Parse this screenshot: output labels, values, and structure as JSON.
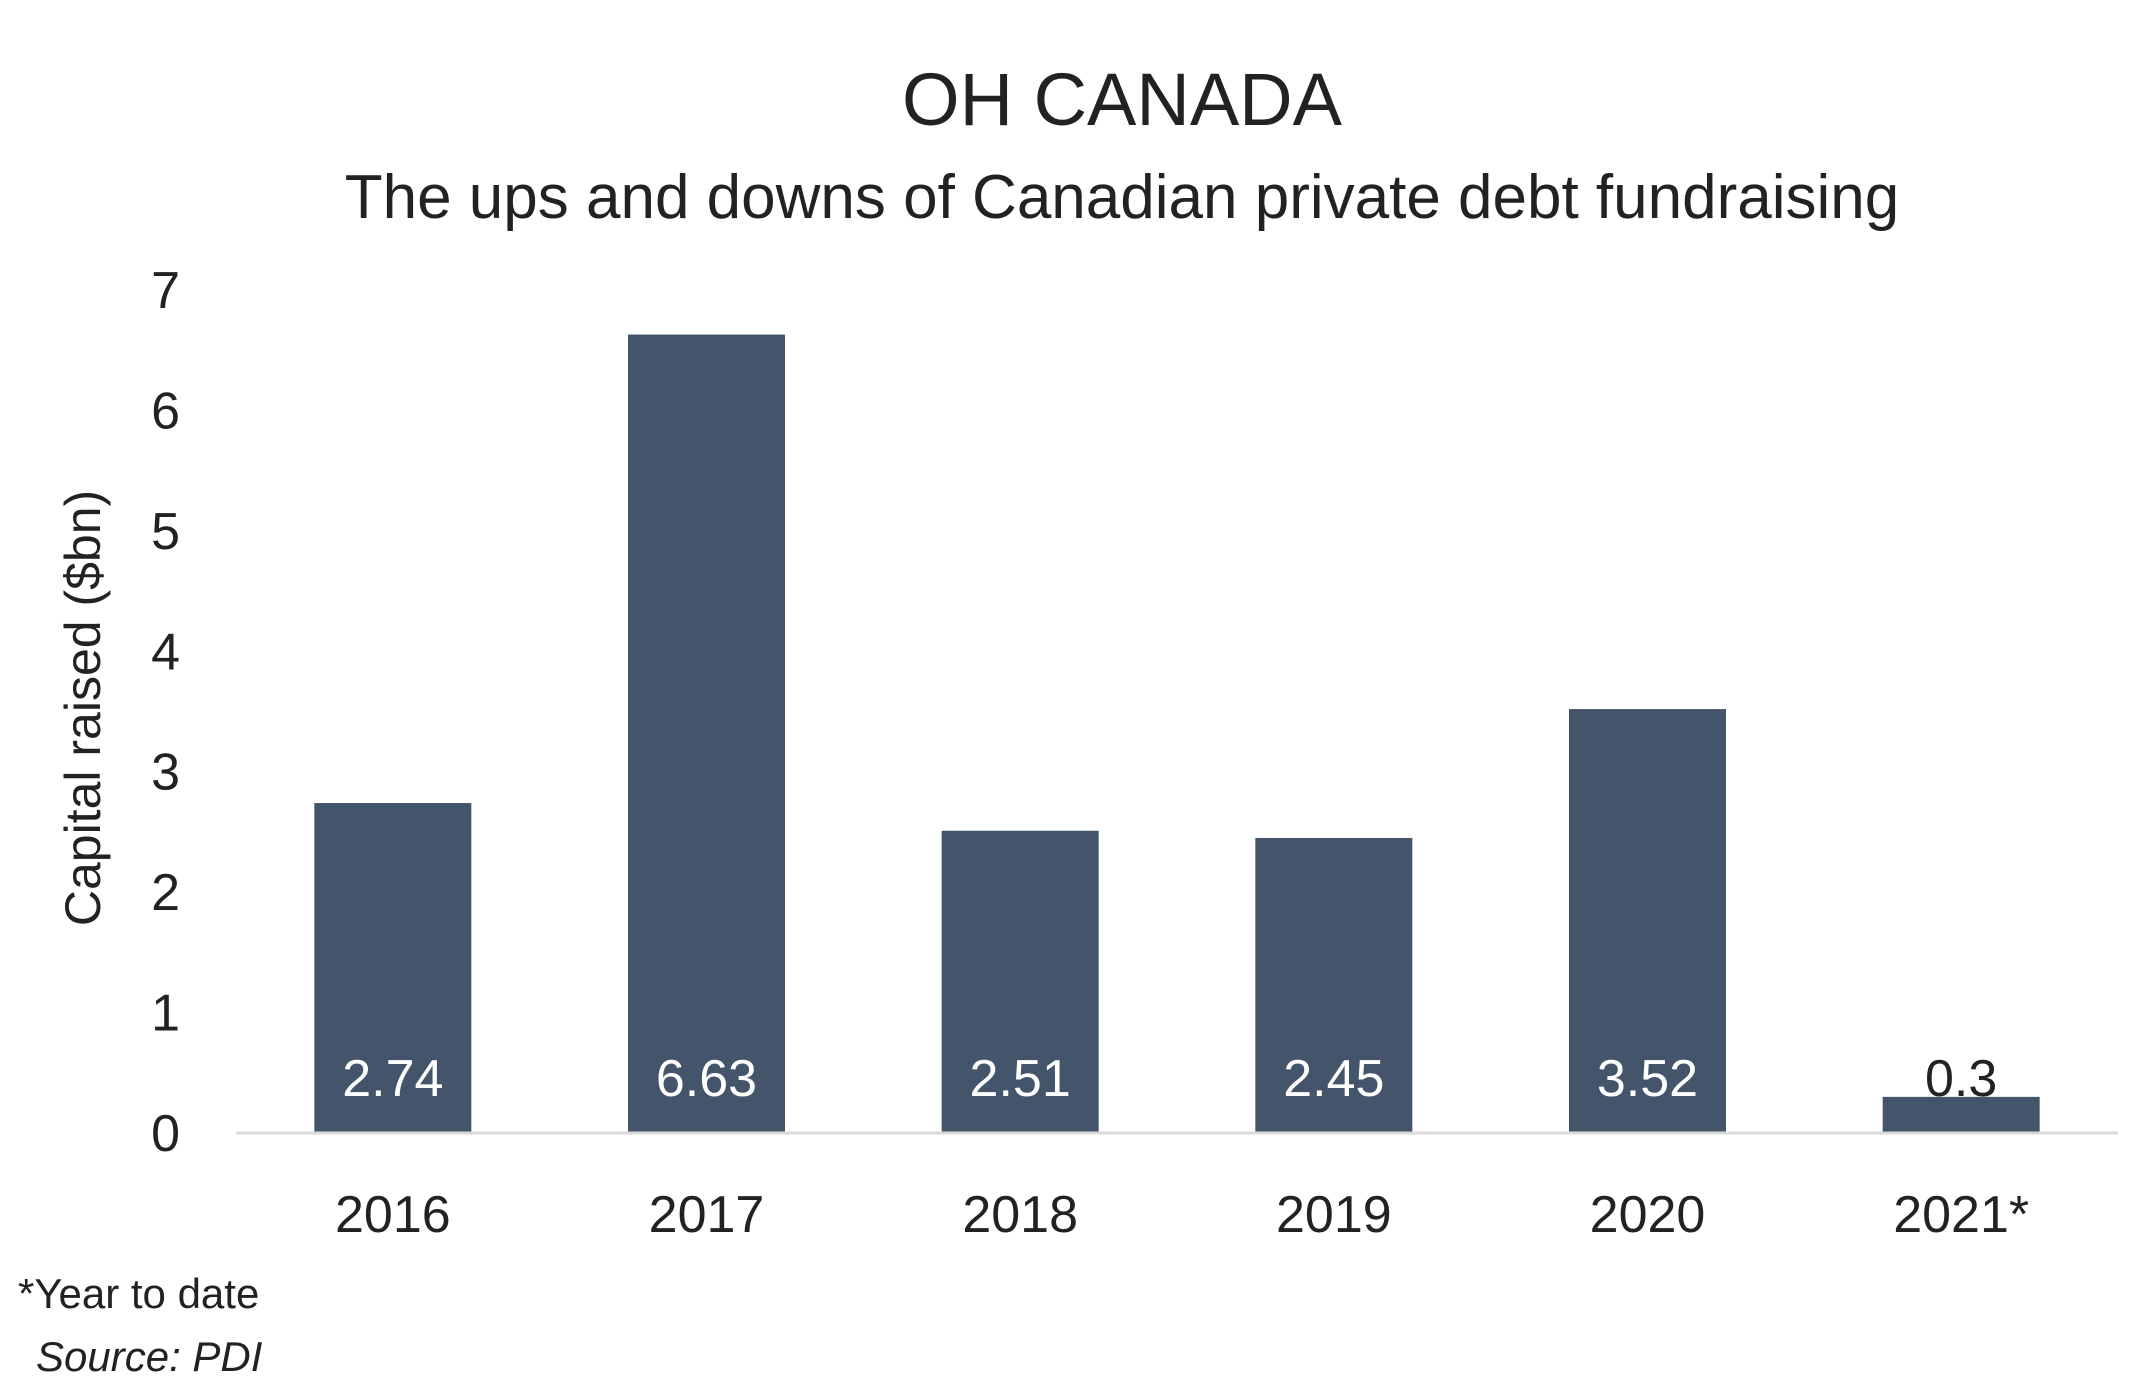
{
  "chart_data": {
    "type": "bar",
    "title": "OH CANADA",
    "subtitle": "The ups and downs of Canadian private debt fundraising",
    "xlabel": "",
    "ylabel": "Capital raised ($bn)",
    "categories": [
      "2016",
      "2017",
      "2018",
      "2019",
      "2020",
      "2021*"
    ],
    "values": [
      2.74,
      6.63,
      2.51,
      2.45,
      3.52,
      0.3
    ],
    "data_labels": [
      "2.74",
      "6.63",
      "2.51",
      "2.45",
      "3.52",
      "0.3"
    ],
    "ylim": [
      0,
      7
    ],
    "yticks": [
      "0",
      "1",
      "2",
      "3",
      "4",
      "5",
      "6",
      "7"
    ],
    "grid": false,
    "legend": "none",
    "colors": {
      "bar": "#44546A",
      "axis": "#D9D9D9",
      "label_inside": "#FFFFFF",
      "label_outside": "#222222"
    }
  },
  "footnote": "*Year to date",
  "source": "Source: PDI"
}
